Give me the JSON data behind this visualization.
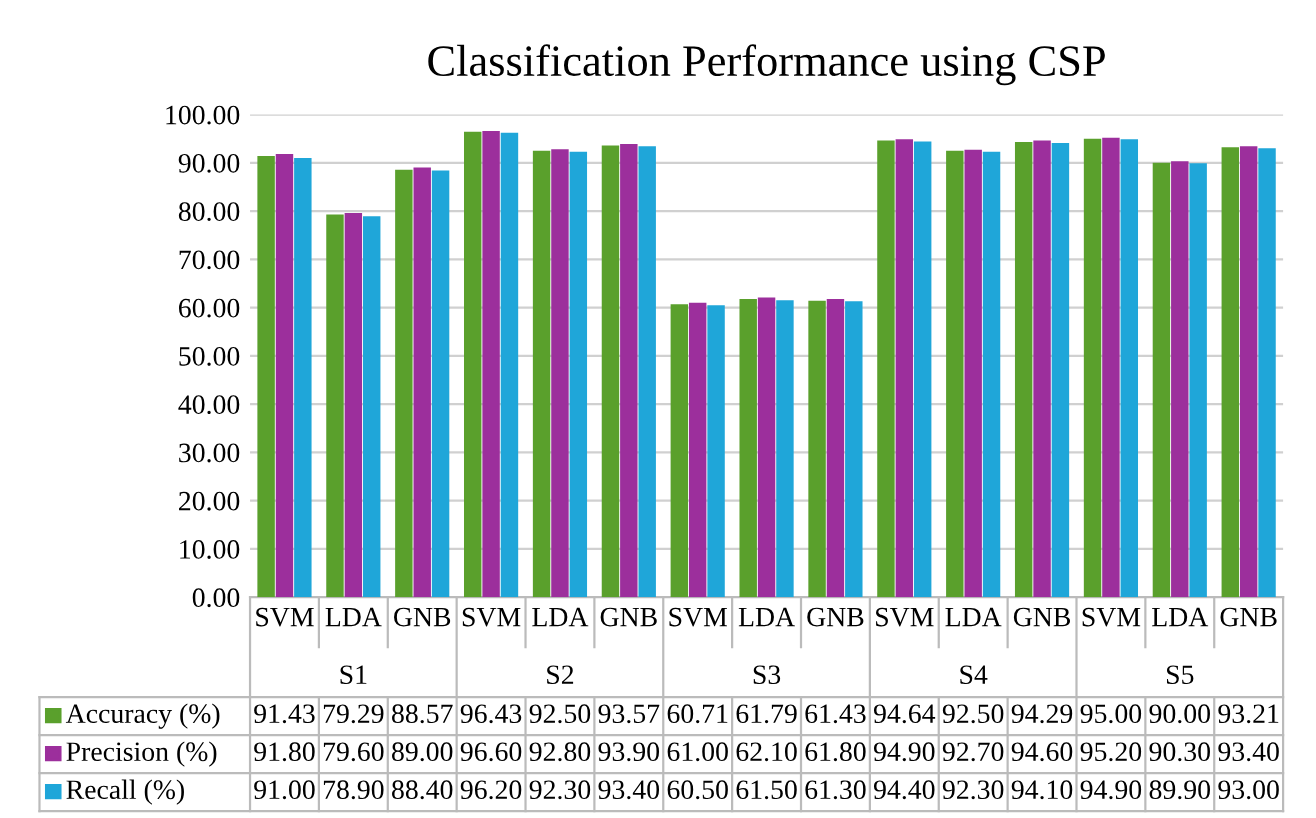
{
  "chart_data": {
    "type": "bar",
    "title": "Classification Performance using CSP",
    "categories": [
      "SVM",
      "LDA",
      "GNB",
      "SVM",
      "LDA",
      "GNB",
      "SVM",
      "LDA",
      "GNB",
      "SVM",
      "LDA",
      "GNB",
      "SVM",
      "LDA",
      "GNB"
    ],
    "annotations": [
      "S1",
      "S2",
      "S3",
      "S4",
      "S5"
    ],
    "series": [
      {
        "name": "Accuracy (%)",
        "color": "#5aa02c",
        "values": [
          91.43,
          79.29,
          88.57,
          96.43,
          92.5,
          93.57,
          60.71,
          61.79,
          61.43,
          94.64,
          92.5,
          94.29,
          95.0,
          90.0,
          93.21
        ],
        "value_labels": [
          "91.43",
          "79.29",
          "88.57",
          "96.43",
          "92.50",
          "93.57",
          "60.71",
          "61.79",
          "61.43",
          "94.64",
          "92.50",
          "94.29",
          "95.00",
          "90.00",
          "93.21"
        ]
      },
      {
        "name": "Precision (%)",
        "color": "#9c2f9c",
        "values": [
          91.8,
          79.6,
          89.0,
          96.6,
          92.8,
          93.9,
          61.0,
          62.1,
          61.8,
          94.9,
          92.7,
          94.6,
          95.2,
          90.3,
          93.4
        ],
        "value_labels": [
          "91.80",
          "79.60",
          "89.00",
          "96.60",
          "92.80",
          "93.90",
          "61.00",
          "62.10",
          "61.80",
          "94.90",
          "92.70",
          "94.60",
          "95.20",
          "90.30",
          "93.40"
        ]
      },
      {
        "name": "Recall (%)",
        "color": "#1fa6d9",
        "values": [
          91.0,
          78.9,
          88.4,
          96.2,
          92.3,
          93.4,
          60.5,
          61.5,
          61.3,
          94.4,
          92.3,
          94.1,
          94.9,
          89.9,
          93.0
        ],
        "value_labels": [
          "91.00",
          "78.90",
          "88.40",
          "96.20",
          "92.30",
          "93.40",
          "60.50",
          "61.50",
          "61.30",
          "94.40",
          "92.30",
          "94.10",
          "94.90",
          "89.90",
          "93.00"
        ]
      }
    ],
    "ylim": [
      0,
      100
    ],
    "yticks": [
      {
        "value": 0,
        "label": "0.00"
      },
      {
        "value": 10,
        "label": "10.00"
      },
      {
        "value": 20,
        "label": "20.00"
      },
      {
        "value": 30,
        "label": "30.00"
      },
      {
        "value": 40,
        "label": "40.00"
      },
      {
        "value": 50,
        "label": "50.00"
      },
      {
        "value": 60,
        "label": "60.00"
      },
      {
        "value": 70,
        "label": "70.00"
      },
      {
        "value": 80,
        "label": "80.00"
      },
      {
        "value": 90,
        "label": "90.00"
      },
      {
        "value": 100,
        "label": "100.00"
      }
    ],
    "grid": "y",
    "legend": "bottom"
  }
}
